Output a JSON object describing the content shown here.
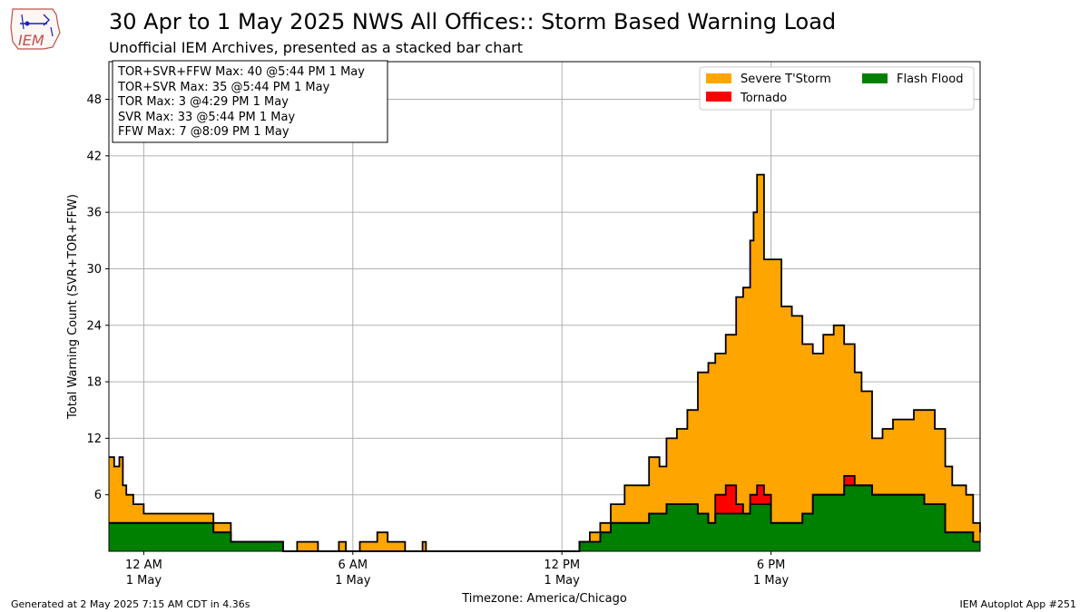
{
  "header": {
    "title": "30 Apr to 1 May 2025 NWS All Offices:: Storm Based Warning Load",
    "subtitle": "Unofficial IEM Archives, presented as a stacked bar chart",
    "logo_text": "IEM"
  },
  "footer": {
    "generated": "Generated at 2 May 2025 7:15 AM CDT in 4.36s",
    "app": "IEM Autoplot App #251"
  },
  "stats_box": [
    "TOR+SVR+FFW Max: 40 @5:44 PM 1 May",
    "TOR+SVR Max: 35 @5:44 PM 1 May",
    "TOR Max: 3 @4:29 PM 1 May",
    "SVR Max: 33 @5:44 PM 1 May",
    "FFW Max: 7 @8:09 PM 1 May"
  ],
  "colors": {
    "svr": "#ffa500",
    "tor": "#ff0000",
    "ffw": "#008000"
  },
  "chart_data": {
    "type": "area",
    "stacked": true,
    "ylabel": "Total Warning Count (SVR+TOR+FFW)",
    "xlabel": "Timezone: America/Chicago",
    "xlim": [
      -1.0,
      24.0
    ],
    "ylim": [
      0,
      52
    ],
    "yticks": [
      6,
      12,
      18,
      24,
      30,
      36,
      42,
      48
    ],
    "xticks": [
      {
        "x": 0,
        "line1": "12 AM",
        "line2": "1 May"
      },
      {
        "x": 6,
        "line1": "6 AM",
        "line2": "1 May"
      },
      {
        "x": 12,
        "line1": "12 PM",
        "line2": "1 May"
      },
      {
        "x": 18,
        "line1": "6 PM",
        "line2": "1 May"
      }
    ],
    "grid": true,
    "legend": {
      "placement": "top-right"
    },
    "x": [
      -1.0,
      -0.85,
      -0.7,
      -0.6,
      -0.5,
      -0.3,
      0.0,
      0.5,
      1.0,
      1.3,
      1.5,
      1.7,
      2.0,
      2.2,
      2.5,
      3.0,
      4.0,
      4.4,
      5.0,
      5.6,
      5.8,
      6.0,
      6.2,
      6.5,
      6.7,
      7.0,
      7.5,
      8.0,
      8.1,
      8.3,
      9.0,
      10.0,
      11.0,
      12.0,
      12.5,
      12.8,
      13.1,
      13.4,
      13.8,
      14.2,
      14.5,
      14.8,
      15.0,
      15.3,
      15.6,
      15.9,
      16.2,
      16.4,
      16.7,
      17.0,
      17.2,
      17.4,
      17.5,
      17.6,
      17.8,
      18.0,
      18.3,
      18.6,
      18.9,
      19.2,
      19.5,
      19.8,
      20.1,
      20.4,
      20.6,
      20.9,
      21.2,
      21.5,
      21.8,
      22.1,
      22.4,
      22.7,
      23.0,
      23.2,
      23.4,
      23.6,
      23.8,
      24.0
    ],
    "series": [
      {
        "name": "Flash Flood",
        "values": [
          3,
          3,
          3,
          3,
          3,
          3,
          3,
          3,
          3,
          3,
          3,
          3,
          2,
          2,
          1,
          1,
          0,
          0,
          0,
          0,
          0,
          0,
          0,
          0,
          0,
          0,
          0,
          0,
          0,
          0,
          0,
          0,
          0,
          0,
          1,
          1,
          2,
          3,
          3,
          3,
          4,
          4,
          5,
          5,
          5,
          4,
          3,
          4,
          4,
          4,
          4,
          5,
          5,
          5,
          5,
          3,
          3,
          3,
          4,
          6,
          6,
          6,
          7,
          7,
          7,
          6,
          6,
          6,
          6,
          6,
          5,
          5,
          2,
          2,
          2,
          2,
          1,
          1
        ]
      },
      {
        "name": "Tornado",
        "values": [
          0,
          0,
          0,
          0,
          0,
          0,
          0,
          0,
          0,
          0,
          0,
          0,
          0,
          0,
          0,
          0,
          0,
          0,
          0,
          0,
          0,
          0,
          0,
          0,
          0,
          0,
          0,
          0,
          0,
          0,
          0,
          0,
          0,
          0,
          0,
          0,
          0,
          0,
          0,
          0,
          0,
          0,
          0,
          0,
          0,
          0,
          0,
          2,
          3,
          1,
          0,
          1,
          1,
          2,
          1,
          0,
          0,
          0,
          0,
          0,
          0,
          0,
          1,
          0,
          0,
          0,
          0,
          0,
          0,
          0,
          0,
          0,
          0,
          0,
          0,
          0,
          0,
          0
        ]
      },
      {
        "name": "Severe T'Storm",
        "values": [
          7,
          6,
          7,
          4,
          3,
          2,
          1,
          1,
          1,
          1,
          1,
          1,
          1,
          1,
          0,
          0,
          0,
          1,
          0,
          1,
          0,
          0,
          1,
          1,
          2,
          1,
          0,
          1,
          0,
          0,
          0,
          0,
          0,
          0,
          0,
          1,
          1,
          2,
          4,
          4,
          6,
          5,
          7,
          8,
          10,
          15,
          17,
          15,
          16,
          22,
          24,
          27,
          30,
          33,
          25,
          28,
          23,
          22,
          18,
          15,
          17,
          18,
          14,
          12,
          10,
          6,
          7,
          8,
          8,
          9,
          10,
          8,
          7,
          5,
          5,
          4,
          2,
          1
        ]
      }
    ],
    "totals": [
      10,
      9,
      10,
      7,
      6,
      5,
      4,
      4,
      4,
      4,
      4,
      4,
      3,
      3,
      1,
      1,
      0,
      1,
      0,
      1,
      0,
      0,
      1,
      1,
      2,
      1,
      0,
      1,
      0,
      0,
      0,
      0,
      0,
      0,
      1,
      2,
      3,
      5,
      7,
      7,
      10,
      9,
      12,
      13,
      15,
      19,
      20,
      21,
      23,
      27,
      28,
      33,
      36,
      40,
      31,
      31,
      26,
      25,
      22,
      21,
      23,
      24,
      22,
      19,
      17,
      12,
      13,
      14,
      14,
      15,
      15,
      13,
      9,
      7,
      7,
      6,
      3,
      2
    ]
  }
}
